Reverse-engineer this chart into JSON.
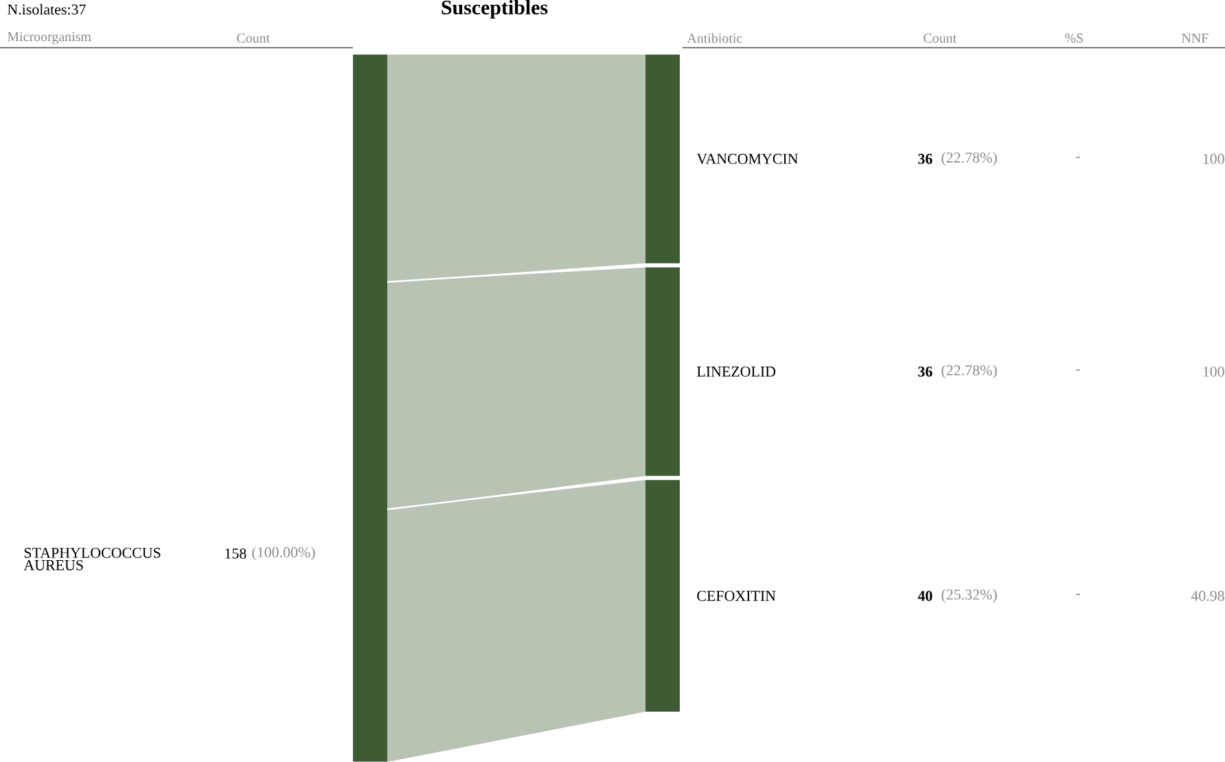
{
  "chart_data": {
    "type": "other",
    "title": "Susceptibles",
    "categories": [
      "STAPHYLOCOCCUS AUREUS",
      "VANCOMYCIN",
      "LINEZOLID",
      "CEFOXITIN"
    ],
    "values": [
      158,
      36,
      36,
      40
    ],
    "data_labels": true,
    "colors": [
      "#3e5c34",
      "#3e5c34",
      "#3e5c34",
      "#3e5c34"
    ],
    "annotations": [
      "N.isolates:37",
      "Microorganism",
      "Count",
      "Antibiotic",
      "Count",
      "%S",
      "NNF",
      "-",
      "-",
      "-",
      "100",
      "100",
      "40.98",
      "(100.00%)",
      "(22.78%)",
      "(22.78%)",
      "(25.32%)"
    ]
  }
}
